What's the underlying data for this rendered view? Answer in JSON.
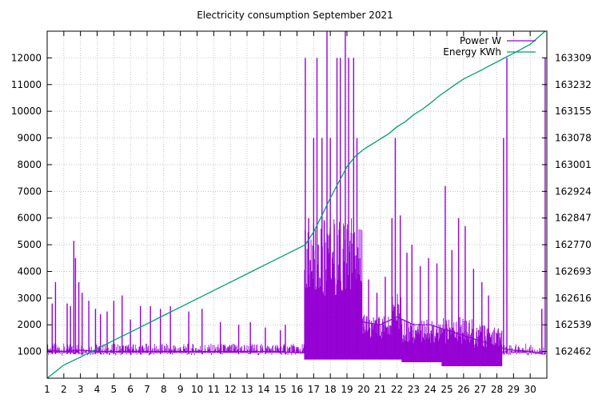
{
  "chart_data": {
    "type": "line",
    "title": "Electricity consumption September 2021",
    "xlabel": "",
    "ylabel": "",
    "y2label": "",
    "grid": true,
    "legend_position": "top-right",
    "x_ticks": [
      "1",
      "2",
      "3",
      "4",
      "5",
      "6",
      "7",
      "8",
      "9",
      "10",
      "11",
      "12",
      "13",
      "14",
      "15",
      "16",
      "17",
      "18",
      "19",
      "20",
      "21",
      "22",
      "23",
      "24",
      "25",
      "26",
      "27",
      "28",
      "29",
      "30"
    ],
    "x_range": [
      1,
      31
    ],
    "y_ticks": [
      1000,
      2000,
      3000,
      4000,
      5000,
      6000,
      7000,
      8000,
      9000,
      10000,
      11000,
      12000
    ],
    "y_range": [
      0,
      13000
    ],
    "y2_ticks": [
      162462,
      162539,
      162616,
      162693,
      162770,
      162847,
      162924,
      163001,
      163078,
      163155,
      163232,
      163309
    ],
    "y2_range": [
      162385,
      163386
    ],
    "series": [
      {
        "name": "Power W",
        "axis": "left",
        "color": "#9400d3",
        "baseline": [
          [
            1,
            1050
          ],
          [
            2,
            1000
          ],
          [
            3,
            1050
          ],
          [
            4,
            1000
          ],
          [
            5,
            1000
          ],
          [
            6,
            1000
          ],
          [
            7,
            1000
          ],
          [
            8,
            1000
          ],
          [
            9,
            1000
          ],
          [
            10,
            1000
          ],
          [
            11,
            1000
          ],
          [
            12,
            1000
          ],
          [
            13,
            1000
          ],
          [
            14,
            1000
          ],
          [
            15,
            1000
          ],
          [
            16,
            950
          ],
          [
            16.45,
            950
          ],
          [
            16.5,
            1600
          ],
          [
            17,
            2200
          ],
          [
            18,
            2300
          ],
          [
            19,
            2200
          ],
          [
            20,
            2100
          ],
          [
            21,
            2000
          ],
          [
            22,
            2300
          ],
          [
            23,
            2000
          ],
          [
            24,
            2000
          ],
          [
            25,
            1800
          ],
          [
            26,
            1600
          ],
          [
            27,
            1400
          ],
          [
            28,
            1200
          ],
          [
            28.5,
            1100
          ],
          [
            29,
            1050
          ],
          [
            30,
            1000
          ],
          [
            30.8,
            900
          ]
        ],
        "bands": [
          {
            "x0": 16.45,
            "x1": 19.9,
            "low": 700,
            "high": 6000
          },
          {
            "x0": 19.9,
            "x1": 21.7,
            "low": 700,
            "high": 2400
          },
          {
            "x0": 21.7,
            "x1": 22.3,
            "low": 700,
            "high": 3200
          },
          {
            "x0": 22.3,
            "x1": 24.7,
            "low": 600,
            "high": 2200
          },
          {
            "x0": 24.7,
            "x1": 26.5,
            "low": 450,
            "high": 2300
          },
          {
            "x0": 26.5,
            "x1": 28.3,
            "low": 450,
            "high": 2000
          }
        ],
        "spikes": [
          [
            1.3,
            2800
          ],
          [
            1.5,
            3600
          ],
          [
            2.2,
            2800
          ],
          [
            2.4,
            2700
          ],
          [
            2.6,
            5150
          ],
          [
            2.7,
            4500
          ],
          [
            2.9,
            3600
          ],
          [
            3.1,
            3200
          ],
          [
            3.5,
            2900
          ],
          [
            3.9,
            2600
          ],
          [
            4.2,
            2400
          ],
          [
            4.6,
            2500
          ],
          [
            5.0,
            2900
          ],
          [
            5.5,
            3100
          ],
          [
            6.0,
            2200
          ],
          [
            6.6,
            2700
          ],
          [
            7.2,
            2700
          ],
          [
            7.8,
            2600
          ],
          [
            8.4,
            2700
          ],
          [
            9.5,
            2500
          ],
          [
            10.3,
            2600
          ],
          [
            11.4,
            2100
          ],
          [
            12.5,
            2000
          ],
          [
            13.2,
            2100
          ],
          [
            14.1,
            1900
          ],
          [
            15.0,
            1800
          ],
          [
            15.3,
            2000
          ],
          [
            16.5,
            12000
          ],
          [
            16.7,
            6000
          ],
          [
            17.0,
            9000
          ],
          [
            17.2,
            12000
          ],
          [
            17.5,
            9000
          ],
          [
            17.8,
            13000
          ],
          [
            18.0,
            9000
          ],
          [
            18.4,
            12000
          ],
          [
            18.6,
            12000
          ],
          [
            18.9,
            13000
          ],
          [
            19.1,
            12000
          ],
          [
            19.4,
            12000
          ],
          [
            19.6,
            9000
          ],
          [
            20.3,
            3700
          ],
          [
            20.8,
            3200
          ],
          [
            21.3,
            3800
          ],
          [
            21.7,
            6000
          ],
          [
            21.9,
            9000
          ],
          [
            22.2,
            6100
          ],
          [
            22.6,
            4700
          ],
          [
            22.9,
            5000
          ],
          [
            23.4,
            4200
          ],
          [
            23.9,
            4500
          ],
          [
            24.4,
            4300
          ],
          [
            24.9,
            7200
          ],
          [
            25.3,
            4800
          ],
          [
            25.7,
            6000
          ],
          [
            26.1,
            5700
          ],
          [
            26.6,
            4100
          ],
          [
            27.1,
            3600
          ],
          [
            27.5,
            3100
          ],
          [
            28.4,
            9000
          ],
          [
            28.6,
            12000
          ],
          [
            30.7,
            2600
          ],
          [
            30.9,
            12000
          ]
        ]
      },
      {
        "name": "Energy KWh",
        "axis": "right",
        "color": "#009e73",
        "points": [
          [
            1,
            162385
          ],
          [
            2,
            162423
          ],
          [
            3,
            162446
          ],
          [
            4,
            162470
          ],
          [
            5,
            162494
          ],
          [
            6,
            162518
          ],
          [
            7,
            162542
          ],
          [
            8,
            162566
          ],
          [
            9,
            162590
          ],
          [
            10,
            162614
          ],
          [
            11,
            162638
          ],
          [
            12,
            162662
          ],
          [
            13,
            162686
          ],
          [
            14,
            162710
          ],
          [
            15,
            162734
          ],
          [
            16,
            162758
          ],
          [
            16.5,
            162770
          ],
          [
            17,
            162807
          ],
          [
            17.5,
            162855
          ],
          [
            18,
            162905
          ],
          [
            18.5,
            162950
          ],
          [
            19,
            162995
          ],
          [
            19.5,
            163025
          ],
          [
            20,
            163045
          ],
          [
            20.5,
            163060
          ],
          [
            21,
            163075
          ],
          [
            21.5,
            163090
          ],
          [
            22,
            163110
          ],
          [
            22.5,
            163125
          ],
          [
            23,
            163145
          ],
          [
            23.5,
            163160
          ],
          [
            24,
            163178
          ],
          [
            24.5,
            163198
          ],
          [
            25,
            163215
          ],
          [
            25.5,
            163232
          ],
          [
            26,
            163248
          ],
          [
            26.5,
            163260
          ],
          [
            27,
            163272
          ],
          [
            27.5,
            163285
          ],
          [
            28,
            163297
          ],
          [
            28.5,
            163310
          ],
          [
            29,
            163322
          ],
          [
            29.5,
            163335
          ],
          [
            30,
            163348
          ],
          [
            30.9,
            163386
          ]
        ]
      }
    ]
  }
}
